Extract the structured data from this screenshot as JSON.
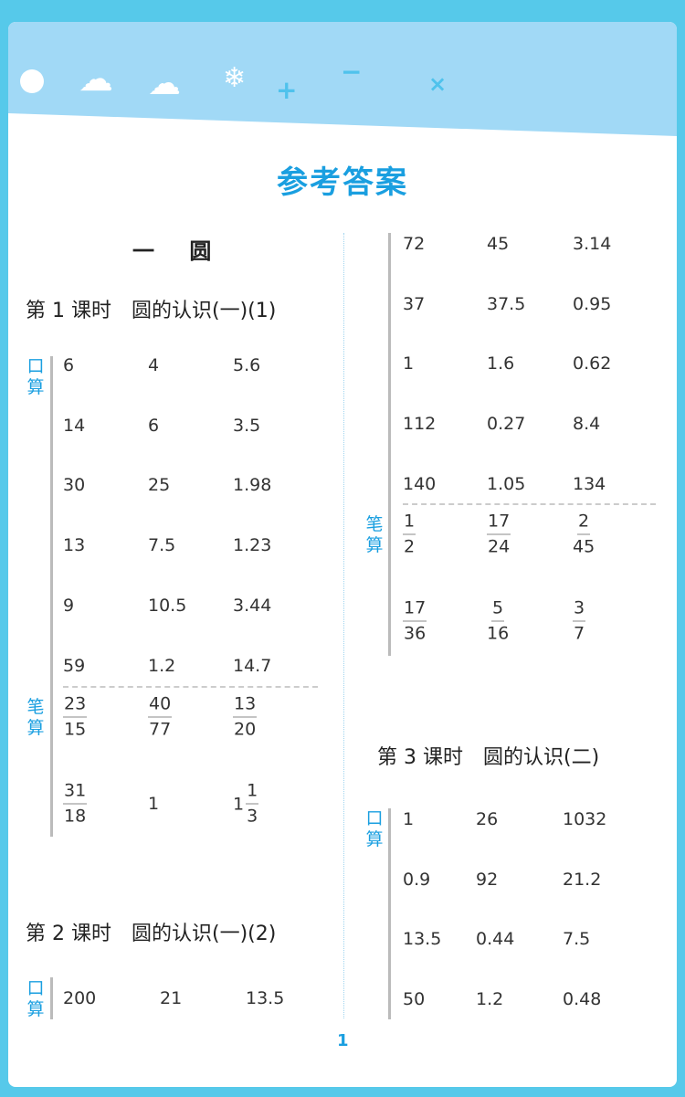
{
  "header": {
    "icons": [
      "sun-icon",
      "partly-cloudy-icon",
      "rain-icon",
      "snowflake-icon",
      "plus-icon",
      "minus-icon",
      "times-icon"
    ],
    "ops": {
      "plus": "+",
      "minus": "−",
      "times": "×"
    }
  },
  "title": "参考答案",
  "unit_title": "一 圆",
  "colors": {
    "accent": "#1a9fe0",
    "border": "#56c9ea",
    "header": "#a1d9f6"
  },
  "page_number": "1",
  "sections": [
    {
      "title": "第 1 课时　圆的认识(一)(1)",
      "blocks": [
        {
          "label": "口算",
          "rows": [
            [
              "6",
              "4",
              "5.6"
            ],
            [
              "14",
              "6",
              "3.5"
            ],
            [
              "30",
              "25",
              "1.98"
            ],
            [
              "13",
              "7.5",
              "1.23"
            ],
            [
              "9",
              "10.5",
              "3.44"
            ],
            [
              "59",
              "1.2",
              "14.7"
            ]
          ]
        },
        {
          "label": "笔算",
          "rows": [
            [
              {
                "n": "23",
                "d": "15"
              },
              {
                "n": "40",
                "d": "77"
              },
              {
                "n": "13",
                "d": "20"
              }
            ],
            [
              {
                "n": "31",
                "d": "18"
              },
              "1",
              {
                "w": "1",
                "n": "1",
                "d": "3"
              }
            ]
          ]
        }
      ]
    },
    {
      "title": "第 2 课时　圆的认识(一)(2)",
      "blocks": [
        {
          "label": "口算",
          "rows": [
            [
              "200",
              "21",
              "13.5"
            ],
            [
              "72",
              "45",
              "3.14"
            ],
            [
              "37",
              "37.5",
              "0.95"
            ],
            [
              "1",
              "1.6",
              "0.62"
            ],
            [
              "112",
              "0.27",
              "8.4"
            ],
            [
              "140",
              "1.05",
              "134"
            ]
          ]
        },
        {
          "label": "笔算",
          "rows": [
            [
              {
                "n": "1",
                "d": "2"
              },
              {
                "n": "17",
                "d": "24"
              },
              {
                "n": "2",
                "d": "45"
              }
            ],
            [
              {
                "n": "17",
                "d": "36"
              },
              {
                "n": "5",
                "d": "16"
              },
              {
                "n": "3",
                "d": "7"
              }
            ]
          ]
        }
      ]
    },
    {
      "title": "第 3 课时　圆的认识(二)",
      "blocks": [
        {
          "label": "口算",
          "rows": [
            [
              "1",
              "26",
              "1032"
            ],
            [
              "0.9",
              "92",
              "21.2"
            ],
            [
              "13.5",
              "0.44",
              "7.5"
            ],
            [
              "50",
              "1.2",
              "0.48"
            ]
          ]
        }
      ]
    }
  ]
}
